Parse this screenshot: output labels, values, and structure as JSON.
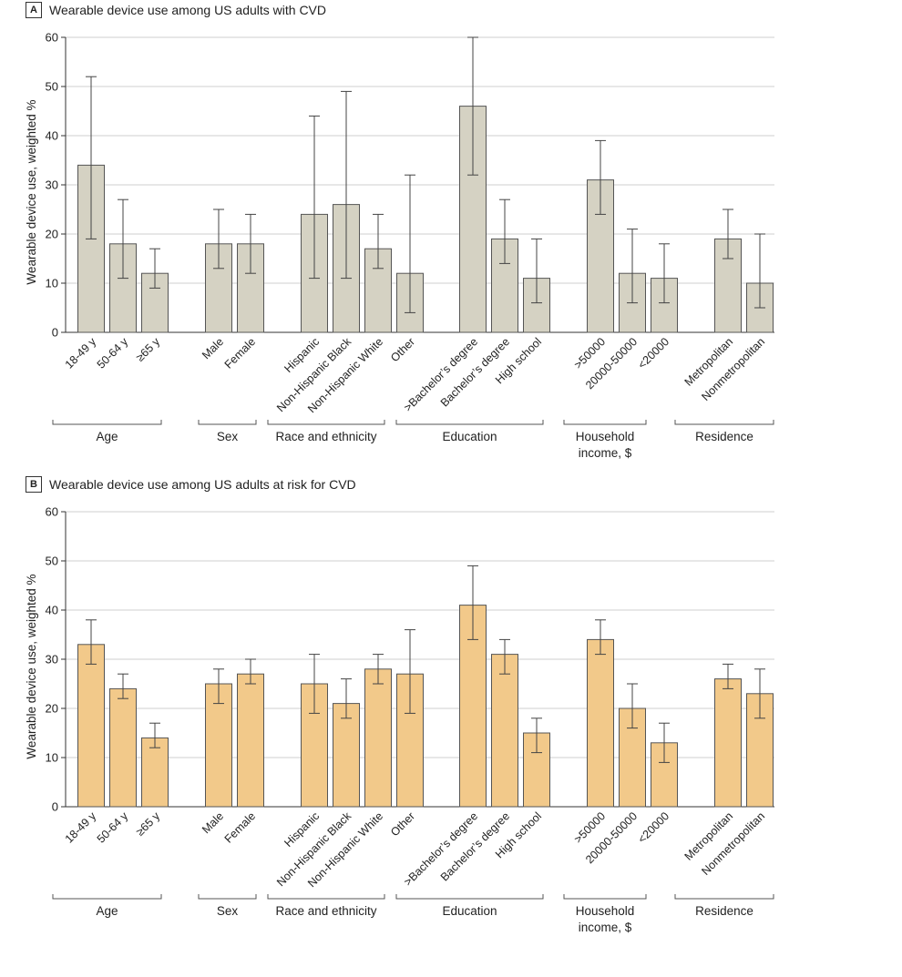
{
  "chart_data": [
    {
      "panel": "A",
      "type": "bar",
      "title": "Wearable device use among US adults with CVD",
      "ylabel": "Wearable device use, weighted %",
      "ylim": [
        0,
        60
      ],
      "yticks": [
        0,
        10,
        20,
        30,
        40,
        50,
        60
      ],
      "bar_color": "#d5d2c3",
      "groups": [
        {
          "label": "Age",
          "label_lines": [
            "Age"
          ],
          "categories": [
            {
              "label": "18-49 y",
              "value": 34,
              "ci": [
                19,
                52
              ]
            },
            {
              "label": "50-64 y",
              "value": 18,
              "ci": [
                11,
                27
              ]
            },
            {
              "label": "≥65 y",
              "value": 12,
              "ci": [
                9,
                17
              ]
            }
          ]
        },
        {
          "label": "Sex",
          "label_lines": [
            "Sex"
          ],
          "categories": [
            {
              "label": "Male",
              "value": 18,
              "ci": [
                13,
                25
              ]
            },
            {
              "label": "Female",
              "value": 18,
              "ci": [
                12,
                24
              ]
            }
          ]
        },
        {
          "label": "Race and ethnicity",
          "label_lines": [
            "Race and ethnicity"
          ],
          "categories": [
            {
              "label": "Hispanic",
              "value": 24,
              "ci": [
                11,
                44
              ]
            },
            {
              "label": "Non-Hispanic Black",
              "value": 26,
              "ci": [
                11,
                49
              ]
            },
            {
              "label": "Non-Hispanic White",
              "value": 17,
              "ci": [
                13,
                24
              ]
            },
            {
              "label": "Other",
              "value": 12,
              "ci": [
                4,
                32
              ]
            }
          ]
        },
        {
          "label": "Education",
          "label_lines": [
            "Education"
          ],
          "categories": [
            {
              "label": ">Bachelor’s degree",
              "value": 46,
              "ci": [
                32,
                60
              ]
            },
            {
              "label": "Bachelor’s degree",
              "value": 19,
              "ci": [
                14,
                27
              ]
            },
            {
              "label": "High school",
              "value": 11,
              "ci": [
                6,
                19
              ]
            }
          ]
        },
        {
          "label": "Household income, $",
          "label_lines": [
            "Household",
            "income, $"
          ],
          "categories": [
            {
              "label": ">50000",
              "value": 31,
              "ci": [
                24,
                39
              ]
            },
            {
              "label": "20000-50000",
              "value": 12,
              "ci": [
                6,
                21
              ]
            },
            {
              "label": "<20000",
              "value": 11,
              "ci": [
                6,
                18
              ]
            }
          ]
        },
        {
          "label": "Residence",
          "label_lines": [
            "Residence"
          ],
          "categories": [
            {
              "label": "Metropolitan",
              "value": 19,
              "ci": [
                15,
                25
              ]
            },
            {
              "label": "Nonmetropolitan",
              "value": 10,
              "ci": [
                5,
                20
              ]
            }
          ]
        }
      ]
    },
    {
      "panel": "B",
      "type": "bar",
      "title": "Wearable device use among US adults at risk for CVD",
      "ylabel": "Wearable device use, weighted %",
      "ylim": [
        0,
        60
      ],
      "yticks": [
        0,
        10,
        20,
        30,
        40,
        50,
        60
      ],
      "bar_color": "#f2c98a",
      "groups": [
        {
          "label": "Age",
          "label_lines": [
            "Age"
          ],
          "categories": [
            {
              "label": "18-49 y",
              "value": 33,
              "ci": [
                29,
                38
              ]
            },
            {
              "label": "50-64 y",
              "value": 24,
              "ci": [
                22,
                27
              ]
            },
            {
              "label": "≥65 y",
              "value": 14,
              "ci": [
                12,
                17
              ]
            }
          ]
        },
        {
          "label": "Sex",
          "label_lines": [
            "Sex"
          ],
          "categories": [
            {
              "label": "Male",
              "value": 25,
              "ci": [
                21,
                28
              ]
            },
            {
              "label": "Female",
              "value": 27,
              "ci": [
                25,
                30
              ]
            }
          ]
        },
        {
          "label": "Race and ethnicity",
          "label_lines": [
            "Race and ethnicity"
          ],
          "categories": [
            {
              "label": "Hispanic",
              "value": 25,
              "ci": [
                19,
                31
              ]
            },
            {
              "label": "Non-Hispanic Black",
              "value": 21,
              "ci": [
                18,
                26
              ]
            },
            {
              "label": "Non-Hispanic White",
              "value": 28,
              "ci": [
                25,
                31
              ]
            },
            {
              "label": "Other",
              "value": 27,
              "ci": [
                19,
                36
              ]
            }
          ]
        },
        {
          "label": "Education",
          "label_lines": [
            "Education"
          ],
          "categories": [
            {
              "label": ">Bachelor’s degree",
              "value": 41,
              "ci": [
                34,
                49
              ]
            },
            {
              "label": "Bachelor’s degree",
              "value": 31,
              "ci": [
                27,
                34
              ]
            },
            {
              "label": "High school",
              "value": 15,
              "ci": [
                11,
                18
              ]
            }
          ]
        },
        {
          "label": "Household income, $",
          "label_lines": [
            "Household",
            "income, $"
          ],
          "categories": [
            {
              "label": ">50000",
              "value": 34,
              "ci": [
                31,
                38
              ]
            },
            {
              "label": "20000-50000",
              "value": 20,
              "ci": [
                16,
                25
              ]
            },
            {
              "label": "<20000",
              "value": 13,
              "ci": [
                9,
                17
              ]
            }
          ]
        },
        {
          "label": "Residence",
          "label_lines": [
            "Residence"
          ],
          "categories": [
            {
              "label": "Metropolitan",
              "value": 26,
              "ci": [
                24,
                29
              ]
            },
            {
              "label": "Nonmetropolitan",
              "value": 23,
              "ci": [
                18,
                28
              ]
            }
          ]
        }
      ]
    }
  ]
}
